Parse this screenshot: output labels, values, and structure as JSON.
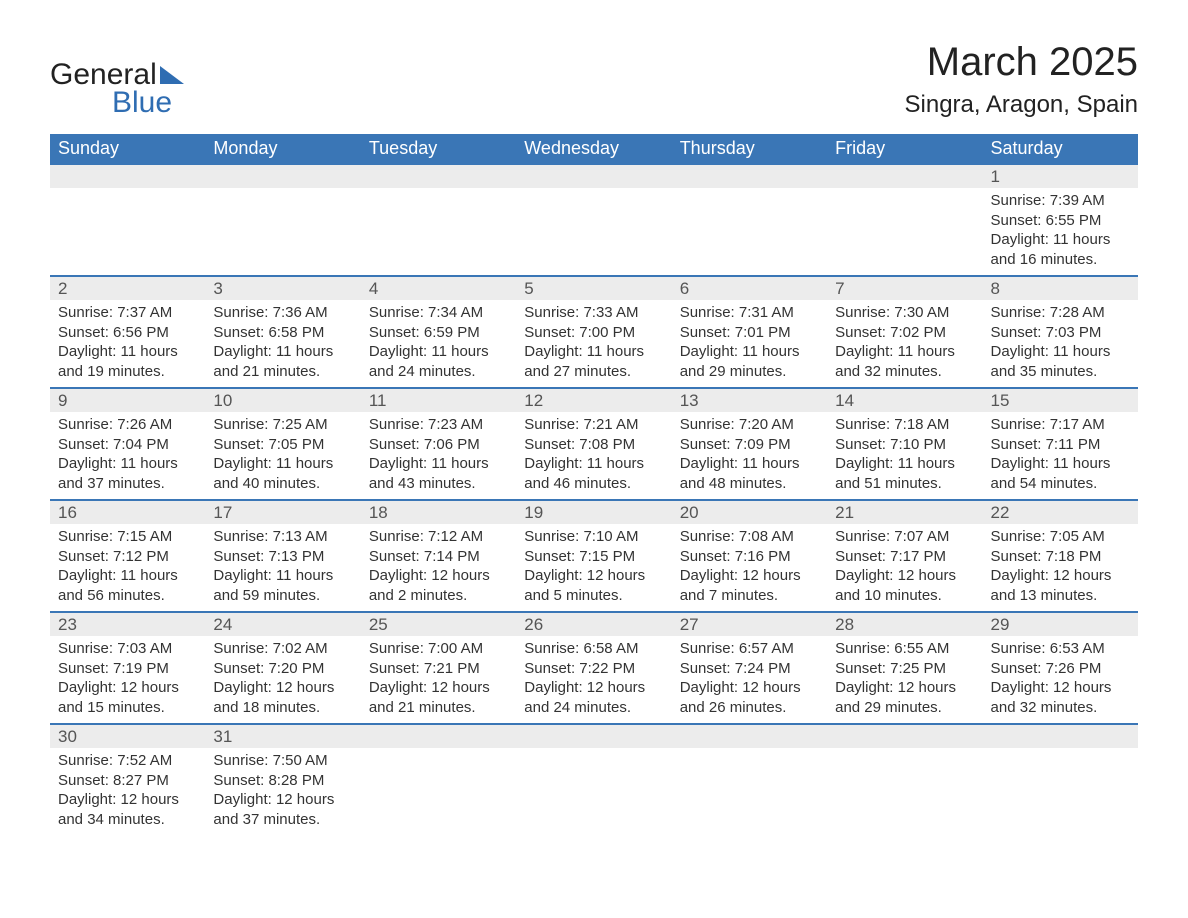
{
  "brand": {
    "word1": "General",
    "word2": "Blue",
    "accent_color": "#2f6db2"
  },
  "title": "March 2025",
  "location": "Singra, Aragon, Spain",
  "header_bg": "#3a76b6",
  "daynum_bg": "#ececec",
  "weekdays": [
    "Sunday",
    "Monday",
    "Tuesday",
    "Wednesday",
    "Thursday",
    "Friday",
    "Saturday"
  ],
  "labels": {
    "sunrise": "Sunrise: ",
    "sunset": "Sunset: ",
    "daylight": "Daylight: "
  },
  "weeks": [
    {
      "nums": [
        "",
        "",
        "",
        "",
        "",
        "",
        "1"
      ],
      "cells": [
        null,
        null,
        null,
        null,
        null,
        null,
        {
          "sr": "7:39 AM",
          "ss": "6:55 PM",
          "dl": "11 hours and 16 minutes."
        }
      ]
    },
    {
      "nums": [
        "2",
        "3",
        "4",
        "5",
        "6",
        "7",
        "8"
      ],
      "cells": [
        {
          "sr": "7:37 AM",
          "ss": "6:56 PM",
          "dl": "11 hours and 19 minutes."
        },
        {
          "sr": "7:36 AM",
          "ss": "6:58 PM",
          "dl": "11 hours and 21 minutes."
        },
        {
          "sr": "7:34 AM",
          "ss": "6:59 PM",
          "dl": "11 hours and 24 minutes."
        },
        {
          "sr": "7:33 AM",
          "ss": "7:00 PM",
          "dl": "11 hours and 27 minutes."
        },
        {
          "sr": "7:31 AM",
          "ss": "7:01 PM",
          "dl": "11 hours and 29 minutes."
        },
        {
          "sr": "7:30 AM",
          "ss": "7:02 PM",
          "dl": "11 hours and 32 minutes."
        },
        {
          "sr": "7:28 AM",
          "ss": "7:03 PM",
          "dl": "11 hours and 35 minutes."
        }
      ]
    },
    {
      "nums": [
        "9",
        "10",
        "11",
        "12",
        "13",
        "14",
        "15"
      ],
      "cells": [
        {
          "sr": "7:26 AM",
          "ss": "7:04 PM",
          "dl": "11 hours and 37 minutes."
        },
        {
          "sr": "7:25 AM",
          "ss": "7:05 PM",
          "dl": "11 hours and 40 minutes."
        },
        {
          "sr": "7:23 AM",
          "ss": "7:06 PM",
          "dl": "11 hours and 43 minutes."
        },
        {
          "sr": "7:21 AM",
          "ss": "7:08 PM",
          "dl": "11 hours and 46 minutes."
        },
        {
          "sr": "7:20 AM",
          "ss": "7:09 PM",
          "dl": "11 hours and 48 minutes."
        },
        {
          "sr": "7:18 AM",
          "ss": "7:10 PM",
          "dl": "11 hours and 51 minutes."
        },
        {
          "sr": "7:17 AM",
          "ss": "7:11 PM",
          "dl": "11 hours and 54 minutes."
        }
      ]
    },
    {
      "nums": [
        "16",
        "17",
        "18",
        "19",
        "20",
        "21",
        "22"
      ],
      "cells": [
        {
          "sr": "7:15 AM",
          "ss": "7:12 PM",
          "dl": "11 hours and 56 minutes."
        },
        {
          "sr": "7:13 AM",
          "ss": "7:13 PM",
          "dl": "11 hours and 59 minutes."
        },
        {
          "sr": "7:12 AM",
          "ss": "7:14 PM",
          "dl": "12 hours and 2 minutes."
        },
        {
          "sr": "7:10 AM",
          "ss": "7:15 PM",
          "dl": "12 hours and 5 minutes."
        },
        {
          "sr": "7:08 AM",
          "ss": "7:16 PM",
          "dl": "12 hours and 7 minutes."
        },
        {
          "sr": "7:07 AM",
          "ss": "7:17 PM",
          "dl": "12 hours and 10 minutes."
        },
        {
          "sr": "7:05 AM",
          "ss": "7:18 PM",
          "dl": "12 hours and 13 minutes."
        }
      ]
    },
    {
      "nums": [
        "23",
        "24",
        "25",
        "26",
        "27",
        "28",
        "29"
      ],
      "cells": [
        {
          "sr": "7:03 AM",
          "ss": "7:19 PM",
          "dl": "12 hours and 15 minutes."
        },
        {
          "sr": "7:02 AM",
          "ss": "7:20 PM",
          "dl": "12 hours and 18 minutes."
        },
        {
          "sr": "7:00 AM",
          "ss": "7:21 PM",
          "dl": "12 hours and 21 minutes."
        },
        {
          "sr": "6:58 AM",
          "ss": "7:22 PM",
          "dl": "12 hours and 24 minutes."
        },
        {
          "sr": "6:57 AM",
          "ss": "7:24 PM",
          "dl": "12 hours and 26 minutes."
        },
        {
          "sr": "6:55 AM",
          "ss": "7:25 PM",
          "dl": "12 hours and 29 minutes."
        },
        {
          "sr": "6:53 AM",
          "ss": "7:26 PM",
          "dl": "12 hours and 32 minutes."
        }
      ]
    },
    {
      "nums": [
        "30",
        "31",
        "",
        "",
        "",
        "",
        ""
      ],
      "cells": [
        {
          "sr": "7:52 AM",
          "ss": "8:27 PM",
          "dl": "12 hours and 34 minutes."
        },
        {
          "sr": "7:50 AM",
          "ss": "8:28 PM",
          "dl": "12 hours and 37 minutes."
        },
        null,
        null,
        null,
        null,
        null
      ]
    }
  ]
}
